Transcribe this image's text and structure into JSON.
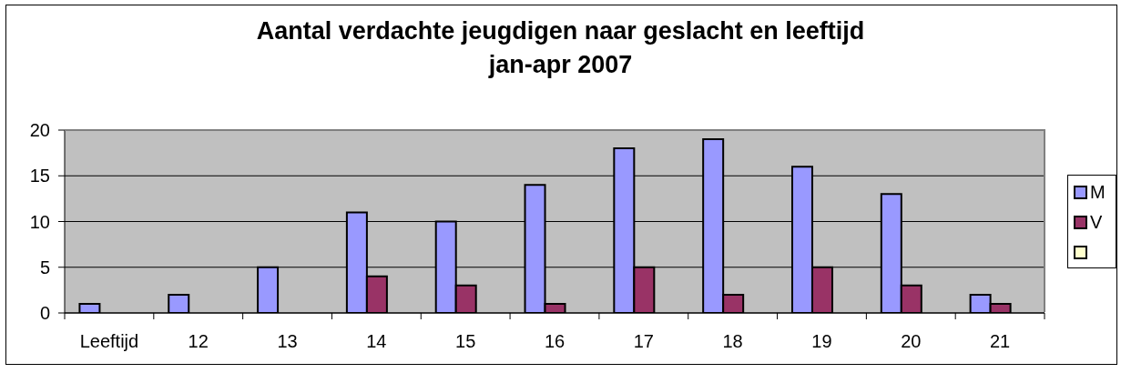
{
  "chart_data": {
    "type": "bar",
    "title": "Aantal verdachte jeugdigen naar geslacht en leeftijd\njan-apr 2007",
    "categories": [
      "Leeftijd",
      "12",
      "13",
      "14",
      "15",
      "16",
      "17",
      "18",
      "19",
      "20",
      "21"
    ],
    "series": [
      {
        "name": "M",
        "color": "#9999ff",
        "values": [
          1,
          2,
          5,
          11,
          10,
          14,
          18,
          19,
          16,
          13,
          2
        ]
      },
      {
        "name": "V",
        "color": "#993366",
        "values": [
          null,
          null,
          null,
          4,
          3,
          1,
          5,
          2,
          5,
          3,
          1
        ]
      },
      {
        "color": "#ffffcc",
        "values": [
          null,
          null,
          null,
          null,
          null,
          null,
          null,
          null,
          null,
          null,
          null
        ]
      }
    ],
    "ylim": [
      0,
      20
    ],
    "yticks": [
      0,
      5,
      10,
      15,
      20
    ],
    "grid": "y",
    "legend": "right"
  }
}
